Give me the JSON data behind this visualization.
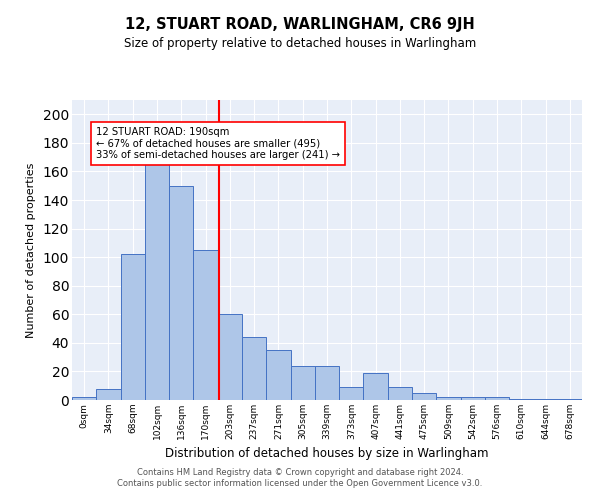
{
  "title": "12, STUART ROAD, WARLINGHAM, CR6 9JH",
  "subtitle": "Size of property relative to detached houses in Warlingham",
  "xlabel": "Distribution of detached houses by size in Warlingham",
  "ylabel": "Number of detached properties",
  "bin_labels": [
    "0sqm",
    "34sqm",
    "68sqm",
    "102sqm",
    "136sqm",
    "170sqm",
    "203sqm",
    "237sqm",
    "271sqm",
    "305sqm",
    "339sqm",
    "373sqm",
    "407sqm",
    "441sqm",
    "475sqm",
    "509sqm",
    "542sqm",
    "576sqm",
    "610sqm",
    "644sqm",
    "678sqm"
  ],
  "bar_heights": [
    2,
    8,
    102,
    165,
    150,
    105,
    60,
    44,
    35,
    24,
    24,
    9,
    19,
    9,
    5,
    2,
    2,
    2,
    1,
    1,
    1
  ],
  "bar_color": "#aec6e8",
  "bar_edge_color": "#4472c4",
  "background_color": "#e8eef8",
  "red_line_bin_index": 5.56,
  "annotation_title": "12 STUART ROAD: 190sqm",
  "annotation_line1": "← 67% of detached houses are smaller (495)",
  "annotation_line2": "33% of semi-detached houses are larger (241) →",
  "footer_line1": "Contains HM Land Registry data © Crown copyright and database right 2024.",
  "footer_line2": "Contains public sector information licensed under the Open Government Licence v3.0.",
  "ylim": [
    0,
    210
  ],
  "yticks": [
    0,
    20,
    40,
    60,
    80,
    100,
    120,
    140,
    160,
    180,
    200
  ]
}
